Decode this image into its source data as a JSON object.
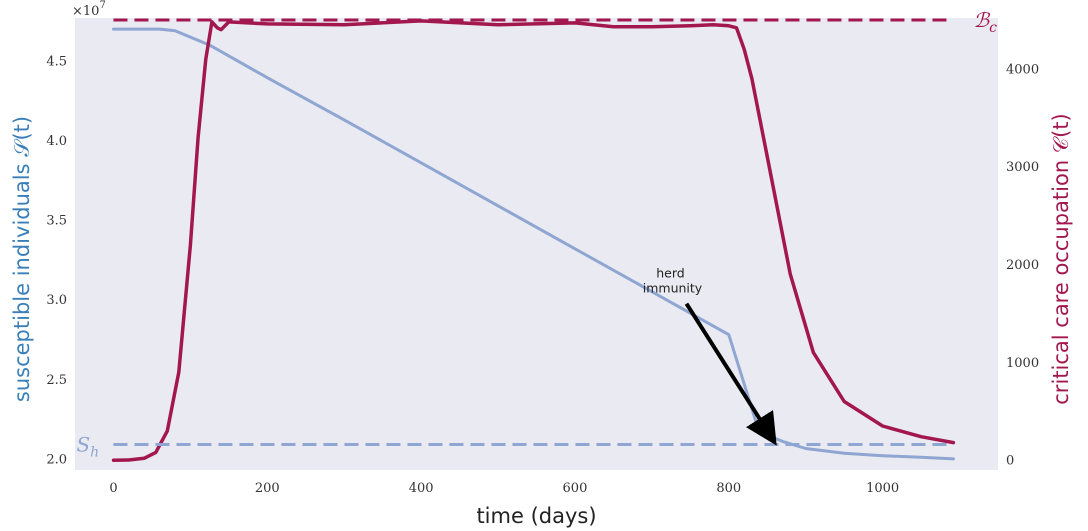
{
  "chart_data": {
    "type": "line",
    "xlabel": "time (days)",
    "ylabel_left": "susceptible individuals 𝒮(t)",
    "ylabel_right": "critical care occupation 𝒞(t)",
    "left_multiplier": "×10",
    "left_multiplier_exp": "7",
    "xlim": [
      -50,
      1150
    ],
    "ylim_left": [
      1.93,
      4.77
    ],
    "ylim_right": [
      -100,
      4520
    ],
    "x_ticks": [
      0,
      200,
      400,
      600,
      800,
      1000
    ],
    "left_ticks": [
      2.0,
      2.5,
      3.0,
      3.5,
      4.0,
      4.5
    ],
    "left_tick_labels": [
      "2.0",
      "2.5",
      "3.0",
      "3.5",
      "4.0",
      "4.5"
    ],
    "right_ticks": [
      0,
      1000,
      2000,
      3000,
      4000
    ],
    "right_tick_labels": [
      "0",
      "1000",
      "2000",
      "3000",
      "4000"
    ],
    "grid": false,
    "colors": {
      "background": "#eaeaf2",
      "susceptible": "#8ea6d1",
      "critical": "#a3174f",
      "left_label": "#3a7fb8",
      "right_label": "#a3174f"
    },
    "series": [
      {
        "axis": "left",
        "x": [
          0,
          60,
          80,
          100,
          125,
          200,
          300,
          400,
          500,
          600,
          700,
          800,
          840,
          860,
          870,
          900,
          950,
          1000,
          1050,
          1092
        ],
        "y": [
          4.7,
          4.7,
          4.69,
          4.65,
          4.6,
          4.395,
          4.13,
          3.86,
          3.59,
          3.32,
          3.05,
          2.78,
          2.16,
          2.13,
          2.11,
          2.065,
          2.035,
          2.02,
          2.01,
          2.0
        ]
      },
      {
        "axis": "right",
        "x": [
          0,
          20,
          40,
          55,
          70,
          85,
          100,
          110,
          120,
          128,
          135,
          140,
          150,
          200,
          300,
          400,
          500,
          600,
          650,
          700,
          750,
          780,
          800,
          810,
          820,
          830,
          850,
          880,
          910,
          950,
          1000,
          1050,
          1092
        ],
        "y": [
          0,
          2,
          20,
          80,
          300,
          900,
          2200,
          3300,
          4100,
          4480,
          4420,
          4400,
          4480,
          4460,
          4450,
          4490,
          4450,
          4470,
          4430,
          4430,
          4440,
          4450,
          4440,
          4420,
          4200,
          3900,
          3100,
          1900,
          1100,
          600,
          350,
          240,
          180
        ]
      }
    ],
    "reference_lines": [
      {
        "axis": "right",
        "value": 4500,
        "label": "ℬ",
        "sub": "c"
      },
      {
        "axis": "left",
        "value": 2.09,
        "label": "S",
        "sub": "h"
      }
    ],
    "annotation": {
      "lines": [
        "herd",
        "immunity"
      ],
      "target": {
        "x": 862,
        "y": 2.09
      },
      "from": {
        "x": 745,
        "y": 2.975
      }
    }
  }
}
